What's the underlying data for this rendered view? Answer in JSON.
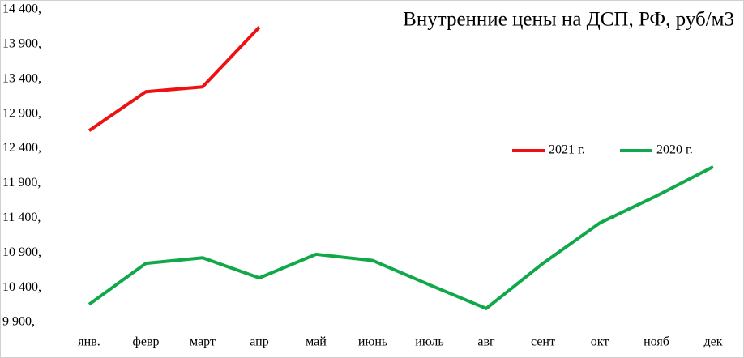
{
  "chart_data": {
    "type": "line",
    "title": "Внутренние цены на ДСП, РФ, руб/м3",
    "categories": [
      "янв.",
      "февр",
      "март",
      "апр",
      "май",
      "июнь",
      "июль",
      "авг",
      "сент",
      "окт",
      "нояб",
      "дек"
    ],
    "series": [
      {
        "name": "2021 г.",
        "color": "#ee1111",
        "values": [
          12660,
          13220,
          13290,
          14150,
          null,
          null,
          null,
          null,
          null,
          null,
          null,
          null
        ]
      },
      {
        "name": "2020 г.",
        "color": "#11a84a",
        "values": [
          10160,
          10750,
          10830,
          10540,
          10880,
          10790,
          10440,
          10100,
          10750,
          11330,
          11720,
          12140
        ]
      }
    ],
    "ylim": [
      9900,
      14400
    ],
    "yticks": [
      {
        "value": 9900,
        "label": "9 900,"
      },
      {
        "value": 10400,
        "label": "10 400,"
      },
      {
        "value": 10900,
        "label": "10 900,"
      },
      {
        "value": 11400,
        "label": "11 400,"
      },
      {
        "value": 11900,
        "label": "11 900,"
      },
      {
        "value": 12400,
        "label": "12 400,"
      },
      {
        "value": 12900,
        "label": "12 900,"
      },
      {
        "value": 13400,
        "label": "13 400,"
      },
      {
        "value": 13900,
        "label": "13 900,"
      },
      {
        "value": 14400,
        "label": "14 400,"
      }
    ],
    "grid": false
  }
}
